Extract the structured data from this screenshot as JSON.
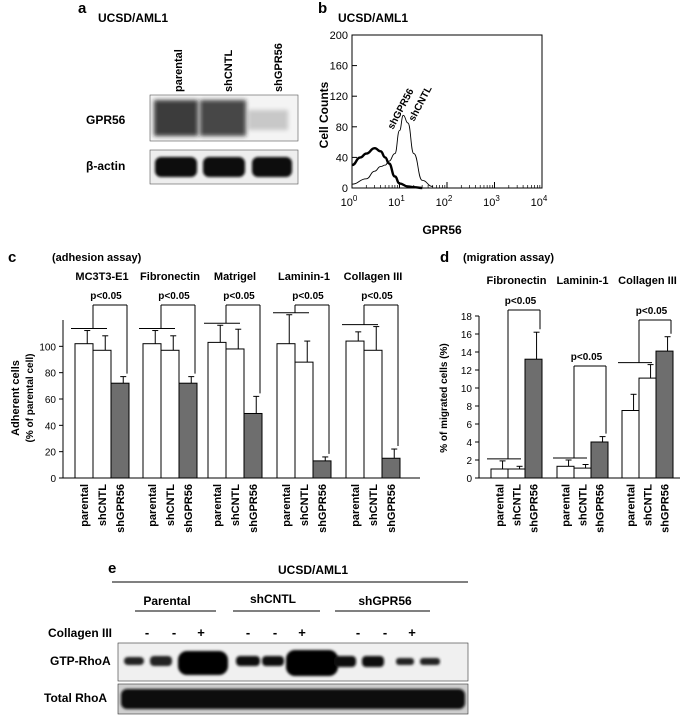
{
  "panel_a": {
    "letter": "a",
    "title": "UCSD/AML1",
    "lanes": [
      "parental",
      "shCNTL",
      "shGPR56"
    ],
    "rows": [
      "GPR56",
      "β-actin"
    ]
  },
  "panel_b": {
    "letter": "b",
    "title": "UCSD/AML1",
    "ylabel": "Cell Counts",
    "xlabel": "GPR56",
    "yticks": [
      "0",
      "40",
      "80",
      "120",
      "160",
      "200"
    ],
    "xticks": [
      {
        "base": "10",
        "exp": "0"
      },
      {
        "base": "10",
        "exp": "1"
      },
      {
        "base": "10",
        "exp": "2"
      },
      {
        "base": "10",
        "exp": "3"
      },
      {
        "base": "10",
        "exp": "4"
      }
    ],
    "curve_labels": [
      "shGPR56",
      "shCNTL"
    ]
  },
  "panel_c": {
    "letter": "c",
    "assay": "(adhesion assay)",
    "ylabel1": "Adherent cells",
    "ylabel2": "(% of parental cell)",
    "yticks": [
      "0",
      "20",
      "40",
      "60",
      "80",
      "100"
    ],
    "pvalue": "p<0.05"
  },
  "panel_d": {
    "letter": "d",
    "assay": "(migration assay)",
    "ylabel": "% of migrated cells (%)",
    "yticks": [
      "0",
      "2",
      "4",
      "6",
      "8",
      "10",
      "12",
      "14",
      "16",
      "18"
    ],
    "pvalue": "p<0.05"
  },
  "panel_e": {
    "letter": "e",
    "title": "UCSD/AML1",
    "groups": [
      "Parental",
      "shCNTL",
      "shGPR56"
    ],
    "treatment_label": "Collagen III",
    "signs": [
      "-",
      "-",
      "+",
      "-",
      "-",
      "+",
      "-",
      "-",
      "+"
    ],
    "rows": [
      "GTP-RhoA",
      "Total RhoA"
    ]
  },
  "chart_data": [
    {
      "type": "histogram",
      "panel": "b",
      "title": "UCSD/AML1",
      "xlabel": "GPR56",
      "ylabel": "Cell Counts",
      "xscale": "log",
      "xlim": [
        1,
        10000
      ],
      "ylim": [
        0,
        200
      ],
      "series": [
        {
          "name": "shGPR56",
          "x": [
            1,
            1.5,
            2,
            3,
            4,
            5,
            6,
            8,
            10,
            15,
            20,
            30
          ],
          "values": [
            30,
            40,
            45,
            52,
            48,
            40,
            32,
            15,
            6,
            2,
            1,
            0
          ]
        },
        {
          "name": "shCNTL",
          "x": [
            1,
            2,
            3,
            4,
            5,
            6,
            8,
            10,
            12,
            15,
            20,
            30,
            50
          ],
          "values": [
            5,
            12,
            22,
            28,
            30,
            35,
            45,
            75,
            95,
            85,
            45,
            10,
            2
          ]
        }
      ]
    },
    {
      "type": "bar",
      "panel": "c",
      "ylabel": "Adherent cells (% of parental cell)",
      "ylim": [
        0,
        120
      ],
      "groups": [
        {
          "name": "MC3T3-E1",
          "categories": [
            "parental",
            "shCNTL",
            "shGPR56"
          ],
          "values": [
            102,
            97,
            72
          ],
          "errors": [
            10,
            11,
            5
          ],
          "pvalue": "p<0.05"
        },
        {
          "name": "Fibronectin",
          "categories": [
            "parental",
            "shCNTL",
            "shGPR56"
          ],
          "values": [
            102,
            97,
            72
          ],
          "errors": [
            10,
            11,
            5
          ],
          "pvalue": "p<0.05"
        },
        {
          "name": "Matrigel",
          "categories": [
            "parental",
            "shCNTL",
            "shGPR56"
          ],
          "values": [
            103,
            98,
            49
          ],
          "errors": [
            13,
            15,
            13
          ],
          "pvalue": "p<0.05"
        },
        {
          "name": "Laminin-1",
          "categories": [
            "parental",
            "shCNTL",
            "shGPR56"
          ],
          "values": [
            102,
            88,
            13
          ],
          "errors": [
            22,
            16,
            3
          ],
          "pvalue": "p<0.05"
        },
        {
          "name": "Collagen III",
          "categories": [
            "parental",
            "shCNTL",
            "shGPR56"
          ],
          "values": [
            104,
            97,
            15
          ],
          "errors": [
            7,
            18,
            7
          ],
          "pvalue": "p<0.05"
        }
      ]
    },
    {
      "type": "bar",
      "panel": "d",
      "ylabel": "% of migrated cells (%)",
      "ylim": [
        0,
        18
      ],
      "groups": [
        {
          "name": "Fibronectin",
          "categories": [
            "parental",
            "shCNTL",
            "shGPR56"
          ],
          "values": [
            1.0,
            1.0,
            13.2
          ],
          "errors": [
            0.9,
            0.3,
            3.0
          ],
          "pvalue": "p<0.05"
        },
        {
          "name": "Laminin-1",
          "categories": [
            "parental",
            "shCNTL",
            "shGPR56"
          ],
          "values": [
            1.3,
            1.1,
            4.0
          ],
          "errors": [
            0.7,
            0.4,
            0.6
          ],
          "pvalue": "p<0.05"
        },
        {
          "name": "Collagen III",
          "categories": [
            "parental",
            "shCNTL",
            "shGPR56"
          ],
          "values": [
            7.5,
            11.1,
            14.1
          ],
          "errors": [
            1.8,
            1.5,
            1.6
          ],
          "pvalue": "p<0.05"
        }
      ]
    }
  ]
}
